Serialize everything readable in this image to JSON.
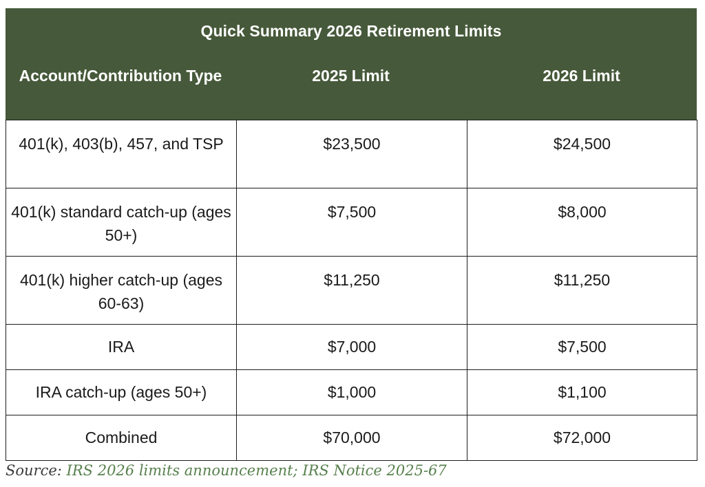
{
  "table": {
    "title": "Quick Summary 2026 Retirement Limits",
    "columns": [
      "Account/Contribution Type",
      "2025 Limit",
      "2026 Limit"
    ],
    "header_color": "#46593a",
    "rows": [
      {
        "type": "401(k), 403(b), 457, and TSP",
        "limit_2025": "$23,500",
        "limit_2026": "$24,500"
      },
      {
        "type": "401(k) standard catch-up (ages 50+)",
        "limit_2025": "$7,500",
        "limit_2026": "$8,000"
      },
      {
        "type": "401(k) higher catch-up (ages 60-63)",
        "limit_2025": "$11,250",
        "limit_2026": "$11,250"
      },
      {
        "type": "IRA",
        "limit_2025": "$7,000",
        "limit_2026": "$7,500"
      },
      {
        "type": "IRA catch-up (ages 50+)",
        "limit_2025": "$1,000",
        "limit_2026": "$1,100"
      },
      {
        "type": "Combined",
        "limit_2025": "$70,000",
        "limit_2026": "$72,000"
      }
    ]
  },
  "source": {
    "label": "Source:",
    "text": "IRS 2026 limits announcement; IRS Notice 2025-67",
    "link_color": "#57804d"
  }
}
